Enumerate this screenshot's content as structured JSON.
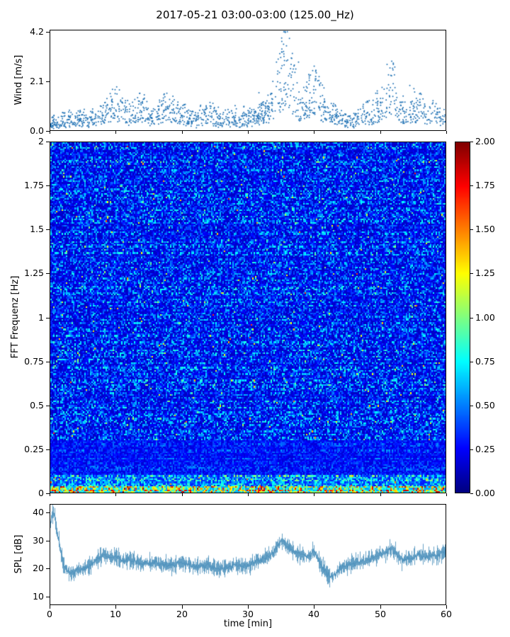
{
  "title": "2017-05-21 03:00-03:00 (125.00_Hz)",
  "xaxis": {
    "label": "time [min]",
    "xlim": [
      0,
      60
    ],
    "ticks": [
      0,
      10,
      20,
      30,
      40,
      50,
      60
    ],
    "tick_labels": [
      "0",
      "10",
      "20",
      "30",
      "40",
      "50",
      "60"
    ]
  },
  "colors": {
    "scatter_marker": "#2273b5",
    "spl_line": "#4a8fbb",
    "axis": "#000000"
  },
  "render_seed": 7,
  "chart_data": [
    {
      "type": "scatter",
      "name": "wind-speed",
      "ylabel": "Wind [m/s]",
      "ylim": [
        0,
        4.3
      ],
      "yticks": [
        0.0,
        2.1,
        4.2
      ],
      "ytick_labels": [
        "0.0",
        "2.1",
        "4.2"
      ],
      "n_points": 1500,
      "marker_color": "#2273b5",
      "envelope_t": [
        0,
        2,
        4,
        6,
        8,
        9,
        10,
        11,
        12,
        13,
        14,
        15,
        16,
        17,
        18,
        19,
        20,
        22,
        24,
        26,
        28,
        30,
        31,
        32,
        33,
        34,
        35,
        36,
        37,
        38,
        39,
        40,
        41,
        42,
        43,
        44,
        46,
        48,
        49,
        50,
        51,
        52,
        53,
        54,
        55,
        56,
        57,
        58,
        59,
        60
      ],
      "envelope_mean": [
        0.35,
        0.5,
        0.55,
        0.6,
        0.7,
        1.0,
        1.3,
        1.1,
        0.8,
        1.0,
        1.2,
        0.7,
        0.8,
        1.0,
        1.2,
        0.9,
        0.8,
        0.6,
        0.85,
        0.55,
        0.7,
        0.6,
        0.7,
        0.8,
        1.0,
        1.6,
        2.6,
        3.1,
        2.0,
        1.2,
        1.5,
        1.9,
        1.5,
        1.0,
        0.8,
        0.6,
        0.5,
        0.8,
        1.0,
        1.2,
        1.7,
        2.3,
        1.1,
        0.8,
        1.0,
        1.2,
        0.8,
        0.9,
        0.7,
        0.6
      ],
      "peak_value": 4.2
    },
    {
      "type": "heatmap",
      "name": "fft-spectrogram",
      "ylabel": "FFT Frequenz [Hz]",
      "ylim": [
        0,
        2
      ],
      "yticks": [
        0,
        0.25,
        0.5,
        0.75,
        1,
        1.25,
        1.5,
        1.75,
        2
      ],
      "ytick_labels": [
        "0",
        "0.25",
        "0.5",
        "0.75",
        "1",
        "1.25",
        "1.5",
        "1.75",
        "2"
      ],
      "vmin": 0,
      "vmax": 2,
      "colormap": "jet",
      "grid_cols": 280,
      "grid_rows": 220,
      "base_value": 0.13,
      "noise_scale": 0.55,
      "speckle_prob": 0.025,
      "speckle_add": 0.45,
      "bands": [
        {
          "freq_max": 0.04,
          "base": 0.55,
          "noise": 1.1,
          "hot_prob": 0.1,
          "hot_value": 1.95
        },
        {
          "freq_max": 0.1,
          "base": 0.28,
          "noise": 0.65,
          "hot_prob": 0.01,
          "hot_value": 1.6
        },
        {
          "freq_max": 0.3,
          "base": 0.17,
          "noise": 0.3,
          "hot_prob": 0.0,
          "hot_value": 0
        }
      ],
      "colorbar": {
        "ticks": [
          0,
          0.25,
          0.5,
          0.75,
          1,
          1.25,
          1.5,
          1.75,
          2
        ],
        "tick_labels": [
          "0.00",
          "0.25",
          "0.50",
          "0.75",
          "1.00",
          "1.25",
          "1.50",
          "1.75",
          "2.00"
        ]
      }
    },
    {
      "type": "line",
      "name": "spl",
      "ylabel": "SPL [dB]",
      "ylim": [
        7,
        43
      ],
      "yticks": [
        10,
        20,
        30,
        40
      ],
      "ytick_labels": [
        "10",
        "20",
        "30",
        "40"
      ],
      "line_color": "#4a8fbb",
      "fuzz_db": [
        0.8,
        4.3
      ],
      "envelope_t": [
        0,
        0.3,
        0.7,
        1,
        1.5,
        2,
        3,
        4,
        5,
        6,
        7,
        8,
        9,
        10,
        11,
        12,
        14,
        16,
        18,
        20,
        22,
        24,
        26,
        28,
        30,
        31,
        32,
        33,
        34,
        35,
        36,
        37,
        38,
        39,
        40,
        41,
        42,
        43,
        44,
        45,
        46,
        47,
        48,
        49,
        50,
        51,
        52,
        53,
        54,
        55,
        56,
        57,
        58,
        59,
        60
      ],
      "envelope_mean": [
        36,
        40,
        38,
        33,
        27,
        21,
        18,
        19,
        20,
        21,
        23,
        25,
        24,
        24,
        23,
        23,
        22,
        22,
        21,
        22,
        21,
        21,
        20,
        21,
        21,
        22,
        23,
        24,
        26,
        30,
        28,
        26,
        25,
        24,
        26,
        22,
        18,
        17,
        20,
        21,
        22,
        22,
        23,
        24,
        25,
        26,
        27,
        24,
        23,
        24,
        25,
        24,
        25,
        25,
        26
      ]
    }
  ]
}
